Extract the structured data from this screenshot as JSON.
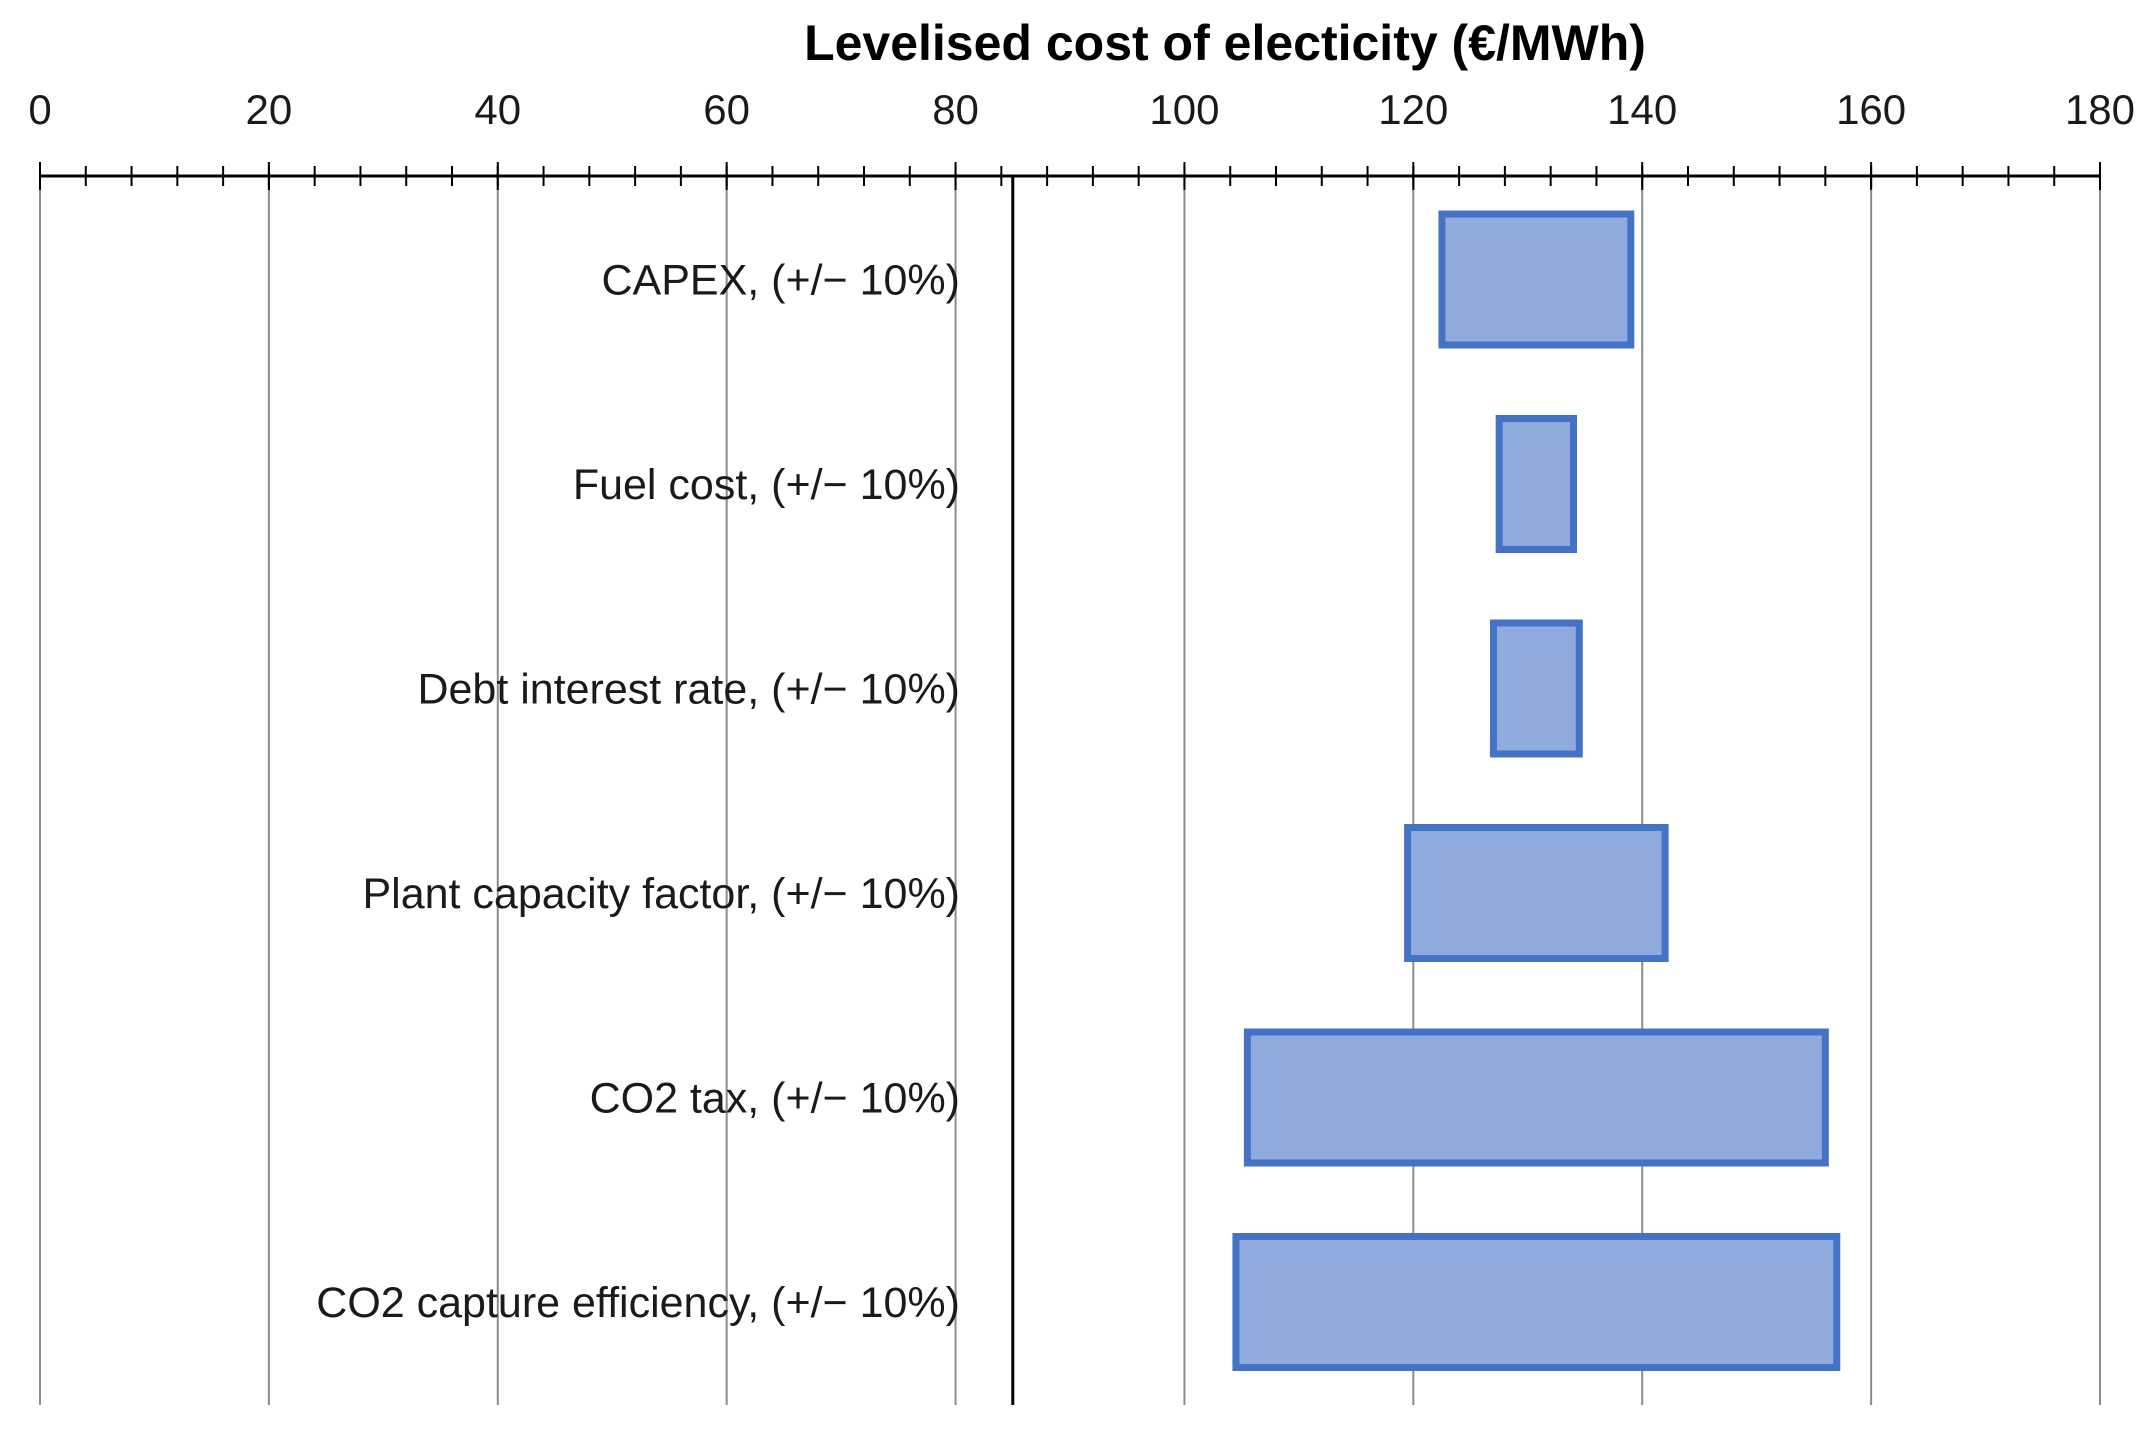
{
  "chart_data": {
    "type": "bar",
    "orientation": "horizontal-range",
    "title": "Levelised cost of electicity (€/MWh)",
    "xlim": [
      0,
      180
    ],
    "ticks": [
      0,
      20,
      40,
      60,
      80,
      100,
      120,
      140,
      160,
      180
    ],
    "minor_tick_step": 4,
    "reference_line": 85,
    "grid": true,
    "bar_fill": "#8faadc",
    "bar_stroke": "#4472c4",
    "bars": [
      {
        "label": "CAPEX, (+/− 10%)",
        "low": 122.5,
        "high": 139
      },
      {
        "label": "Fuel cost, (+/− 10%)",
        "low": 127.5,
        "high": 134
      },
      {
        "label": "Debt interest rate, (+/− 10%)",
        "low": 127,
        "high": 134.5
      },
      {
        "label": "Plant capacity factor, (+/− 10%)",
        "low": 119.5,
        "high": 142
      },
      {
        "label": "CO2 tax, (+/− 10%)",
        "low": 105.5,
        "high": 156
      },
      {
        "label": "CO2 capture efficiency, (+/− 10%)",
        "low": 104.5,
        "high": 157
      }
    ]
  }
}
